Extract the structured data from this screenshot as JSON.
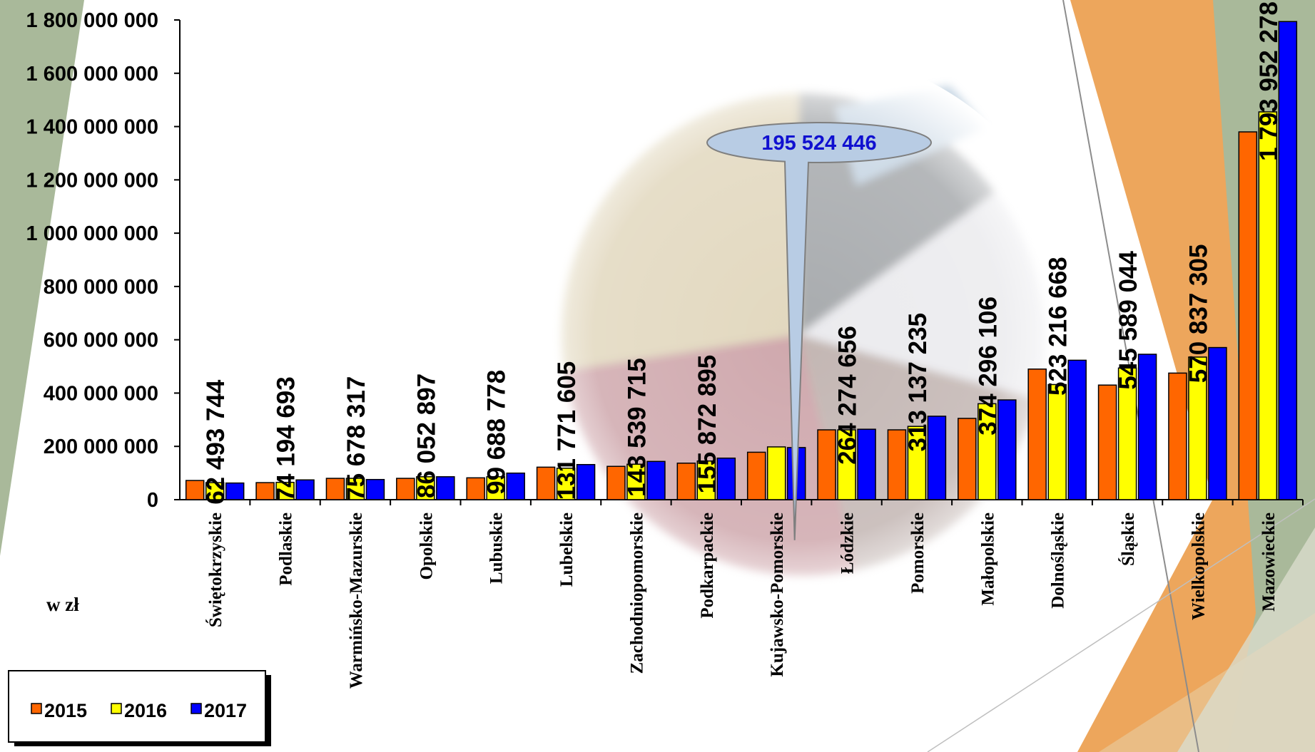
{
  "chart_data": {
    "type": "bar",
    "unit_label": "w zł",
    "yticks": [
      "0",
      "200 000 000",
      "400 000 000",
      "600 000 000",
      "800 000 000",
      "1 000 000 000",
      "1 200 000 000",
      "1 400 000 000",
      "1 600 000 000",
      "1 800 000 000"
    ],
    "ylim": [
      0,
      1800000000
    ],
    "grid": false,
    "legend_position": "bottom-left",
    "categories": [
      "Świętokrzyskie",
      "Podlaskie",
      "Warmińsko-Mazurskie",
      "Opolskie",
      "Lubuskie",
      "Lubelskie",
      "Zachodniopomorskie",
      "Podkarpackie",
      "Kujawsko-Pomorskie",
      "Łódzkie",
      "Pomorskie",
      "Małopolskie",
      "Dolnośląskie",
      "Śląskie",
      "Wielkopolskie",
      "Mazowieckie"
    ],
    "series": [
      {
        "name": "2015",
        "color": "#ff6600",
        "values": [
          72000000,
          64000000,
          80000000,
          80000000,
          82000000,
          122000000,
          125000000,
          137000000,
          178000000,
          262000000,
          262000000,
          305000000,
          490000000,
          430000000,
          475000000,
          1380000000
        ]
      },
      {
        "name": "2016",
        "color": "#ffff00",
        "values": [
          64000000,
          65000000,
          80000000,
          86000000,
          86000000,
          118000000,
          133000000,
          145000000,
          198000000,
          262000000,
          275000000,
          360000000,
          432000000,
          494000000,
          535000000,
          1455000000
        ]
      },
      {
        "name": "2017",
        "color": "#0000ff",
        "values": [
          62493744,
          74194693,
          75678317,
          86052897,
          99688778,
          131771605,
          143539715,
          155872895,
          195524446,
          264274656,
          313137235,
          374296106,
          523216668,
          545589044,
          570837305,
          1793952278
        ]
      }
    ],
    "data_labels": [
      "62 493 744",
      "74 194 693",
      "75 678 317",
      "86 052 897",
      "99 688 778",
      "131 771 605",
      "143 539 715",
      "155 872 895",
      null,
      "264 274 656",
      "313 137 235",
      "374 296 106",
      "523 216 668",
      "545 589 044",
      "570 837 305",
      "1 793 952 278"
    ],
    "callout_label": "195 524 446"
  }
}
